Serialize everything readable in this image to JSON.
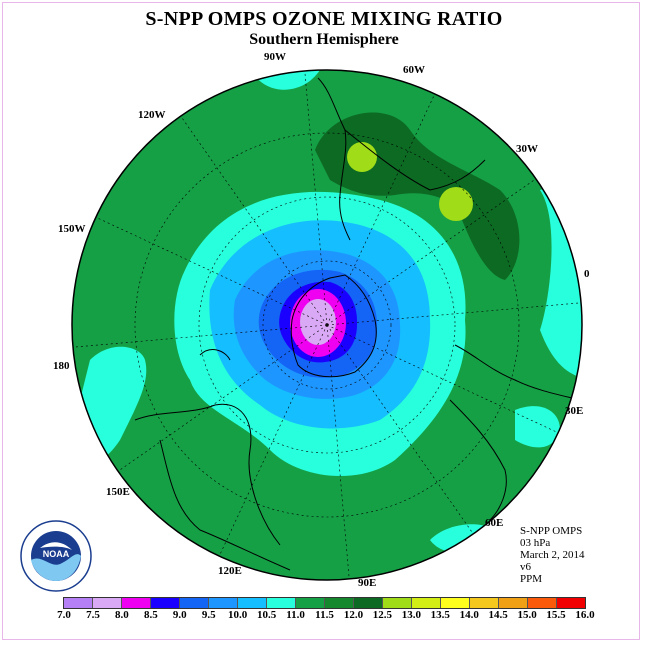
{
  "title": "S-NPP OMPS OZONE MIXING RATIO",
  "subtitle": "Southern Hemisphere",
  "longitude_labels": [
    "90W",
    "60W",
    "30W",
    "0",
    "30E",
    "60E",
    "90E",
    "120E",
    "150E",
    "180",
    "150W",
    "120W"
  ],
  "info": {
    "instrument": "S-NPP OMPS",
    "pressure": "03 hPa",
    "date": "March 2, 2014",
    "version": "v6",
    "units": "PPM"
  },
  "logo": {
    "text": "NOAA",
    "ring_text": "NATIONAL OCEANIC AND ATMOSPHERIC ADMINISTRATION",
    "ring_text_bottom": "U.S. DEPARTMENT OF COMMERCE"
  },
  "colorbar": {
    "ticks": [
      "7.0",
      "7.5",
      "8.0",
      "8.5",
      "9.0",
      "9.5",
      "10.0",
      "10.5",
      "11.0",
      "11.5",
      "12.0",
      "12.5",
      "13.0",
      "13.5",
      "14.0",
      "14.5",
      "15.0",
      "15.5",
      "16.0"
    ],
    "colors": [
      "#b580f5",
      "#d9a9f5",
      "#f000f0",
      "#1a00ff",
      "#1464f5",
      "#1e96ff",
      "#14beff",
      "#28ffdc",
      "#15a046",
      "#15872d",
      "#0c6a23",
      "#a0dc18",
      "#d2ee14",
      "#ffff1e",
      "#f5c81e",
      "#f0a014",
      "#fa5a0a",
      "#f00000",
      "#7a4a2a"
    ]
  },
  "map": {
    "field_levels_ppm": [
      11.0,
      10.5,
      10.0,
      9.5,
      9.0,
      8.5,
      8.0,
      7.5
    ],
    "field_colors": [
      "#15a046",
      "#28ffdc",
      "#14beff",
      "#1e96ff",
      "#1464f5",
      "#1a00ff",
      "#f000f0",
      "#d9a9f5"
    ],
    "high_core_colors": [
      "#0c6a23",
      "#a0dc18"
    ]
  }
}
